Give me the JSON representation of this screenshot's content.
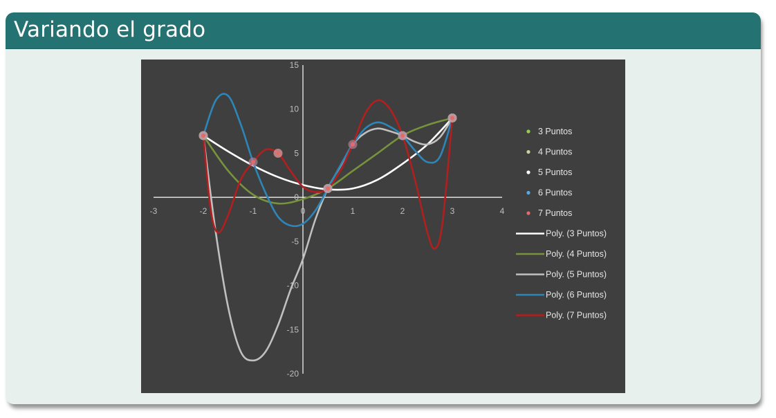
{
  "slide": {
    "title": "Variando el grado"
  },
  "colors": {
    "title_bar": "#247272",
    "block_body": "#e8f0ee",
    "chart_bg": "#3f3f3f",
    "axis": "#ffffff",
    "tick_label": "#bfbfbf"
  },
  "chart_data": {
    "type": "line",
    "xlim": [
      -3,
      4
    ],
    "ylim": [
      -20,
      15
    ],
    "x_ticks": [
      -3,
      -2,
      -1,
      0,
      1,
      2,
      3,
      4
    ],
    "y_ticks": [
      15,
      10,
      5,
      0,
      -5,
      -10,
      -15,
      -20
    ],
    "grid": false,
    "legend_position": "right",
    "scatter_series": [
      {
        "name": "3 Puntos",
        "color": "#92d050",
        "x": [
          -2,
          0.5,
          3
        ],
        "y": [
          7,
          1,
          9
        ]
      },
      {
        "name": "4 Puntos",
        "color": "#c4d79b",
        "x": [
          -2,
          0.5,
          2,
          3
        ],
        "y": [
          7,
          1,
          7,
          9
        ]
      },
      {
        "name": "5 Puntos",
        "color": "#ffffff",
        "x": [
          -2,
          -0.5,
          0.5,
          2,
          3
        ],
        "y": [
          7,
          5,
          1,
          7,
          9
        ]
      },
      {
        "name": "6 Puntos",
        "color": "#5aa9e6",
        "x": [
          -2,
          -1,
          0.5,
          1,
          2,
          3
        ],
        "y": [
          7,
          4,
          1,
          6,
          7,
          9
        ]
      },
      {
        "name": "7 Puntos",
        "color": "#e26b6b",
        "x": [
          -2,
          -1,
          -0.5,
          0.5,
          1,
          2,
          3
        ],
        "y": [
          7,
          4,
          5,
          1,
          6,
          7,
          9
        ]
      }
    ],
    "trend_series": [
      {
        "name": "Poly. (3 Puntos)",
        "color": "#ffffff",
        "x": [
          -2,
          -1.5,
          -1,
          -0.5,
          0,
          0.5,
          1,
          1.5,
          2,
          2.5,
          3
        ],
        "y": [
          7,
          5.2,
          3.6,
          2.3,
          1.4,
          0.9,
          1.0,
          2.0,
          3.8,
          6.0,
          9
        ]
      },
      {
        "name": "Poly. (4 Puntos)",
        "color": "#77933c",
        "x": [
          -2,
          -1.5,
          -1,
          -0.5,
          0,
          0.5,
          1,
          1.5,
          2,
          2.5,
          3
        ],
        "y": [
          7,
          3.0,
          0.3,
          -0.7,
          -0.2,
          1.0,
          3.0,
          5.0,
          7.0,
          8.2,
          9
        ]
      },
      {
        "name": "Poly. (5 Puntos)",
        "color": "#c0c0c0",
        "x": [
          -2,
          -1.75,
          -1.5,
          -1.25,
          -1,
          -0.75,
          -0.5,
          -0.25,
          0,
          0.25,
          0.5,
          0.75,
          1,
          1.25,
          1.5,
          1.75,
          2,
          2.25,
          2.5,
          2.75,
          3
        ],
        "y": [
          7,
          -4,
          -12.5,
          -17.5,
          -18.5,
          -17.5,
          -14.5,
          -10.5,
          -7,
          -2.5,
          1,
          3.5,
          6,
          7.3,
          7.8,
          7.5,
          7,
          6.3,
          6.0,
          6.8,
          9
        ]
      },
      {
        "name": "Poly. (6 Puntos)",
        "color": "#2e86b8",
        "x": [
          -2,
          -1.75,
          -1.5,
          -1.25,
          -1,
          -0.75,
          -0.5,
          -0.25,
          0,
          0.25,
          0.5,
          0.75,
          1,
          1.25,
          1.5,
          1.75,
          2,
          2.25,
          2.5,
          2.75,
          3
        ],
        "y": [
          7,
          11,
          11.5,
          8.3,
          4,
          0.5,
          -2.2,
          -3.2,
          -3.0,
          -1.5,
          1,
          3.6,
          6,
          7.8,
          8.5,
          8.0,
          7,
          5.3,
          4.0,
          4.6,
          9
        ]
      },
      {
        "name": "Poly. (7 Puntos)",
        "color": "#b21f1f",
        "x": [
          -2,
          -1.85,
          -1.7,
          -1.5,
          -1.25,
          -1,
          -0.75,
          -0.5,
          -0.25,
          0,
          0.25,
          0.5,
          0.75,
          1,
          1.25,
          1.5,
          1.75,
          2,
          2.25,
          2.5,
          2.65,
          2.8,
          3
        ],
        "y": [
          7,
          -1.5,
          -4,
          -2,
          2,
          4,
          5.4,
          5,
          3,
          1.2,
          0.6,
          1,
          3,
          6,
          9.5,
          11,
          10,
          7,
          2,
          -4,
          -5.8,
          -3,
          9
        ]
      }
    ]
  }
}
